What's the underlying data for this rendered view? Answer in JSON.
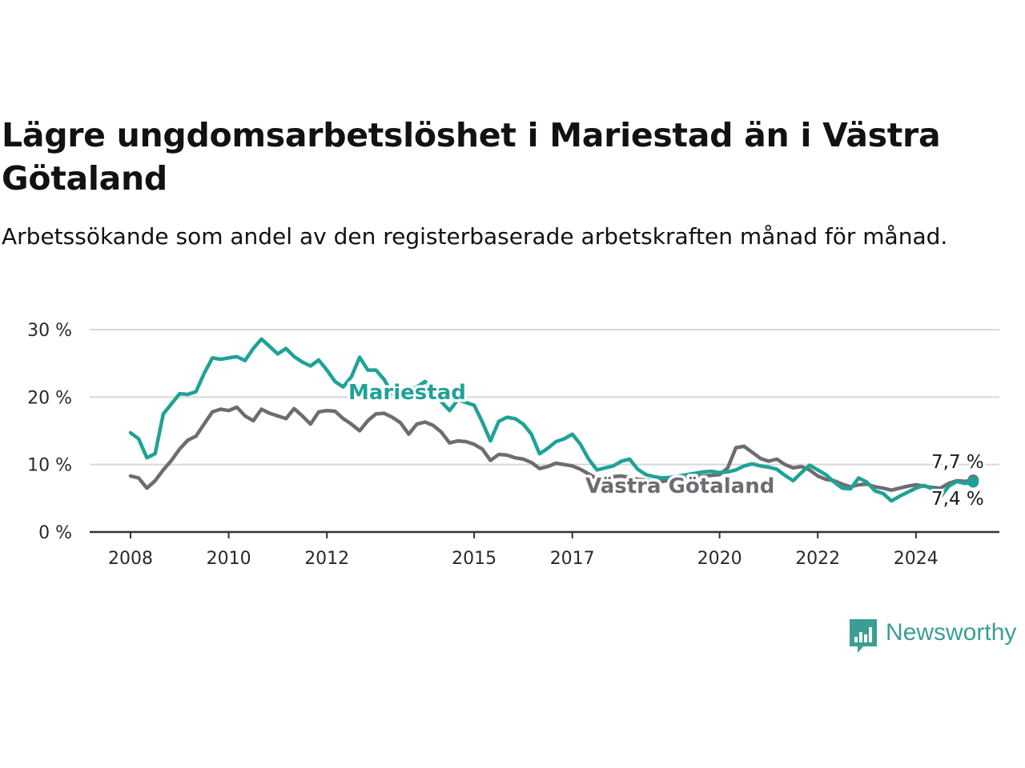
{
  "title": "Lägre ungdomsarbetslöshet i Mariestad än i Västra Götaland",
  "subtitle": "Arbetssökande som andel av den registerbaserade arbetskraften månad för månad.",
  "brand": {
    "name": "Newsworthy",
    "icon": "newsworthy-logo-icon",
    "color": "#3a9e94"
  },
  "chart_data": {
    "type": "line",
    "x_ticks": [
      "2008",
      "2010",
      "2012",
      "2015",
      "2017",
      "2020",
      "2022",
      "2024"
    ],
    "y_ticks": [
      "0 %",
      "10 %",
      "20 %",
      "30 %"
    ],
    "ylim": [
      0,
      30
    ],
    "xlim": [
      "2008-01",
      "2025-09"
    ],
    "grid": "horizontal",
    "series": [
      {
        "name": "Mariestad",
        "color": "#1fa296",
        "end_label": "7,4 %",
        "points": [
          [
            "2008-01",
            14.7
          ],
          [
            "2008-03",
            13.8
          ],
          [
            "2008-05",
            11.0
          ],
          [
            "2008-07",
            11.6
          ],
          [
            "2008-09",
            17.5
          ],
          [
            "2008-11",
            19.0
          ],
          [
            "2009-01",
            20.5
          ],
          [
            "2009-03",
            20.4
          ],
          [
            "2009-05",
            20.8
          ],
          [
            "2009-07",
            23.5
          ],
          [
            "2009-09",
            25.8
          ],
          [
            "2009-11",
            25.6
          ],
          [
            "2010-01",
            25.8
          ],
          [
            "2010-03",
            26.0
          ],
          [
            "2010-05",
            25.4
          ],
          [
            "2010-07",
            27.2
          ],
          [
            "2010-09",
            28.6
          ],
          [
            "2010-11",
            27.5
          ],
          [
            "2011-01",
            26.4
          ],
          [
            "2011-03",
            27.2
          ],
          [
            "2011-05",
            26.0
          ],
          [
            "2011-07",
            25.2
          ],
          [
            "2011-09",
            24.6
          ],
          [
            "2011-11",
            25.5
          ],
          [
            "2012-01",
            24.0
          ],
          [
            "2012-03",
            22.3
          ],
          [
            "2012-05",
            21.5
          ],
          [
            "2012-07",
            23.0
          ],
          [
            "2012-09",
            25.9
          ],
          [
            "2012-11",
            24.0
          ],
          [
            "2013-01",
            24.0
          ],
          [
            "2013-03",
            22.6
          ],
          [
            "2013-05",
            20.5
          ],
          [
            "2013-07",
            20.3
          ],
          [
            "2013-09",
            20.8
          ],
          [
            "2013-11",
            21.5
          ],
          [
            "2014-01",
            22.3
          ],
          [
            "2014-03",
            21.0
          ],
          [
            "2014-05",
            19.3
          ],
          [
            "2014-07",
            18.0
          ],
          [
            "2014-09",
            19.6
          ],
          [
            "2014-11",
            19.2
          ],
          [
            "2015-01",
            18.8
          ],
          [
            "2015-03",
            16.3
          ],
          [
            "2015-05",
            13.5
          ],
          [
            "2015-07",
            16.4
          ],
          [
            "2015-09",
            17.0
          ],
          [
            "2015-11",
            16.8
          ],
          [
            "2016-01",
            16.0
          ],
          [
            "2016-03",
            14.5
          ],
          [
            "2016-05",
            11.6
          ],
          [
            "2016-07",
            12.4
          ],
          [
            "2016-09",
            13.4
          ],
          [
            "2016-11",
            13.8
          ],
          [
            "2017-01",
            14.5
          ],
          [
            "2017-03",
            13.0
          ],
          [
            "2017-05",
            10.8
          ],
          [
            "2017-07",
            9.2
          ],
          [
            "2017-09",
            9.5
          ],
          [
            "2017-11",
            9.8
          ],
          [
            "2018-01",
            10.5
          ],
          [
            "2018-03",
            10.8
          ],
          [
            "2018-05",
            9.3
          ],
          [
            "2018-07",
            8.5
          ],
          [
            "2018-09",
            8.2
          ],
          [
            "2018-11",
            8.0
          ],
          [
            "2019-01",
            8.1
          ],
          [
            "2019-03",
            8.3
          ],
          [
            "2019-05",
            8.5
          ],
          [
            "2019-07",
            8.7
          ],
          [
            "2019-09",
            8.9
          ],
          [
            "2019-11",
            9.0
          ],
          [
            "2020-01",
            8.8
          ],
          [
            "2020-03",
            8.9
          ],
          [
            "2020-05",
            9.2
          ],
          [
            "2020-07",
            9.8
          ],
          [
            "2020-09",
            10.1
          ],
          [
            "2020-11",
            9.8
          ],
          [
            "2021-01",
            9.6
          ],
          [
            "2021-03",
            9.3
          ],
          [
            "2021-05",
            8.4
          ],
          [
            "2021-07",
            7.6
          ],
          [
            "2021-09",
            8.8
          ],
          [
            "2021-11",
            9.9
          ],
          [
            "2022-01",
            9.2
          ],
          [
            "2022-03",
            8.5
          ],
          [
            "2022-05",
            7.4
          ],
          [
            "2022-07",
            6.5
          ],
          [
            "2022-09",
            6.4
          ],
          [
            "2022-11",
            8.0
          ],
          [
            "2023-01",
            7.4
          ],
          [
            "2023-03",
            6.1
          ],
          [
            "2023-05",
            5.7
          ],
          [
            "2023-07",
            4.6
          ],
          [
            "2023-09",
            5.3
          ],
          [
            "2023-11",
            5.9
          ],
          [
            "2024-01",
            6.5
          ],
          [
            "2024-03",
            6.9
          ],
          [
            "2024-05",
            6.4
          ],
          [
            "2024-07",
            5.2
          ],
          [
            "2024-09",
            6.8
          ],
          [
            "2024-11",
            7.5
          ],
          [
            "2025-01",
            7.2
          ],
          [
            "2025-03",
            7.4
          ]
        ]
      },
      {
        "name": "Västra Götaland",
        "color": "#6e6c72",
        "end_label": "7,7 %",
        "points": [
          [
            "2008-01",
            8.3
          ],
          [
            "2008-03",
            8.0
          ],
          [
            "2008-05",
            6.5
          ],
          [
            "2008-07",
            7.6
          ],
          [
            "2008-09",
            9.2
          ],
          [
            "2008-11",
            10.6
          ],
          [
            "2009-01",
            12.3
          ],
          [
            "2009-03",
            13.6
          ],
          [
            "2009-05",
            14.2
          ],
          [
            "2009-07",
            16.0
          ],
          [
            "2009-09",
            17.8
          ],
          [
            "2009-11",
            18.2
          ],
          [
            "2010-01",
            18.0
          ],
          [
            "2010-03",
            18.5
          ],
          [
            "2010-05",
            17.2
          ],
          [
            "2010-07",
            16.5
          ],
          [
            "2010-09",
            18.2
          ],
          [
            "2010-11",
            17.6
          ],
          [
            "2011-01",
            17.2
          ],
          [
            "2011-03",
            16.8
          ],
          [
            "2011-05",
            18.3
          ],
          [
            "2011-07",
            17.2
          ],
          [
            "2011-09",
            16.0
          ],
          [
            "2011-11",
            17.8
          ],
          [
            "2012-01",
            18.0
          ],
          [
            "2012-03",
            17.9
          ],
          [
            "2012-05",
            16.8
          ],
          [
            "2012-07",
            16.0
          ],
          [
            "2012-09",
            15.0
          ],
          [
            "2012-11",
            16.5
          ],
          [
            "2013-01",
            17.5
          ],
          [
            "2013-03",
            17.6
          ],
          [
            "2013-05",
            17.0
          ],
          [
            "2013-07",
            16.2
          ],
          [
            "2013-09",
            14.5
          ],
          [
            "2013-11",
            16.0
          ],
          [
            "2014-01",
            16.3
          ],
          [
            "2014-03",
            15.8
          ],
          [
            "2014-05",
            14.8
          ],
          [
            "2014-07",
            13.2
          ],
          [
            "2014-09",
            13.5
          ],
          [
            "2014-11",
            13.4
          ],
          [
            "2015-01",
            13.0
          ],
          [
            "2015-03",
            12.3
          ],
          [
            "2015-05",
            10.6
          ],
          [
            "2015-07",
            11.5
          ],
          [
            "2015-09",
            11.4
          ],
          [
            "2015-11",
            11.0
          ],
          [
            "2016-01",
            10.8
          ],
          [
            "2016-03",
            10.3
          ],
          [
            "2016-05",
            9.4
          ],
          [
            "2016-07",
            9.7
          ],
          [
            "2016-09",
            10.2
          ],
          [
            "2016-11",
            10.0
          ],
          [
            "2017-01",
            9.8
          ],
          [
            "2017-03",
            9.3
          ],
          [
            "2017-05",
            8.6
          ],
          [
            "2017-07",
            7.9
          ],
          [
            "2017-09",
            8.0
          ],
          [
            "2017-11",
            8.2
          ],
          [
            "2018-01",
            8.3
          ],
          [
            "2018-03",
            8.1
          ],
          [
            "2018-05",
            7.8
          ],
          [
            "2018-07",
            7.7
          ],
          [
            "2018-09",
            7.6
          ],
          [
            "2018-11",
            7.5
          ],
          [
            "2019-01",
            7.7
          ],
          [
            "2019-03",
            7.9
          ],
          [
            "2019-05",
            8.0
          ],
          [
            "2019-07",
            8.2
          ],
          [
            "2019-09",
            8.3
          ],
          [
            "2019-11",
            8.4
          ],
          [
            "2020-01",
            8.5
          ],
          [
            "2020-03",
            9.5
          ],
          [
            "2020-05",
            12.5
          ],
          [
            "2020-07",
            12.7
          ],
          [
            "2020-09",
            11.8
          ],
          [
            "2020-11",
            10.9
          ],
          [
            "2021-01",
            10.5
          ],
          [
            "2021-03",
            10.8
          ],
          [
            "2021-05",
            10.0
          ],
          [
            "2021-07",
            9.5
          ],
          [
            "2021-09",
            9.7
          ],
          [
            "2021-11",
            9.2
          ],
          [
            "2022-01",
            8.3
          ],
          [
            "2022-03",
            7.8
          ],
          [
            "2022-05",
            7.6
          ],
          [
            "2022-07",
            7.1
          ],
          [
            "2022-09",
            6.7
          ],
          [
            "2022-11",
            7.0
          ],
          [
            "2023-01",
            7.1
          ],
          [
            "2023-03",
            6.7
          ],
          [
            "2023-05",
            6.5
          ],
          [
            "2023-07",
            6.2
          ],
          [
            "2023-09",
            6.5
          ],
          [
            "2023-11",
            6.8
          ],
          [
            "2024-01",
            7.0
          ],
          [
            "2024-03",
            6.8
          ],
          [
            "2024-05",
            6.6
          ],
          [
            "2024-07",
            6.5
          ],
          [
            "2024-09",
            7.2
          ],
          [
            "2024-11",
            7.6
          ],
          [
            "2025-01",
            7.5
          ],
          [
            "2025-03",
            7.7
          ]
        ]
      }
    ]
  }
}
